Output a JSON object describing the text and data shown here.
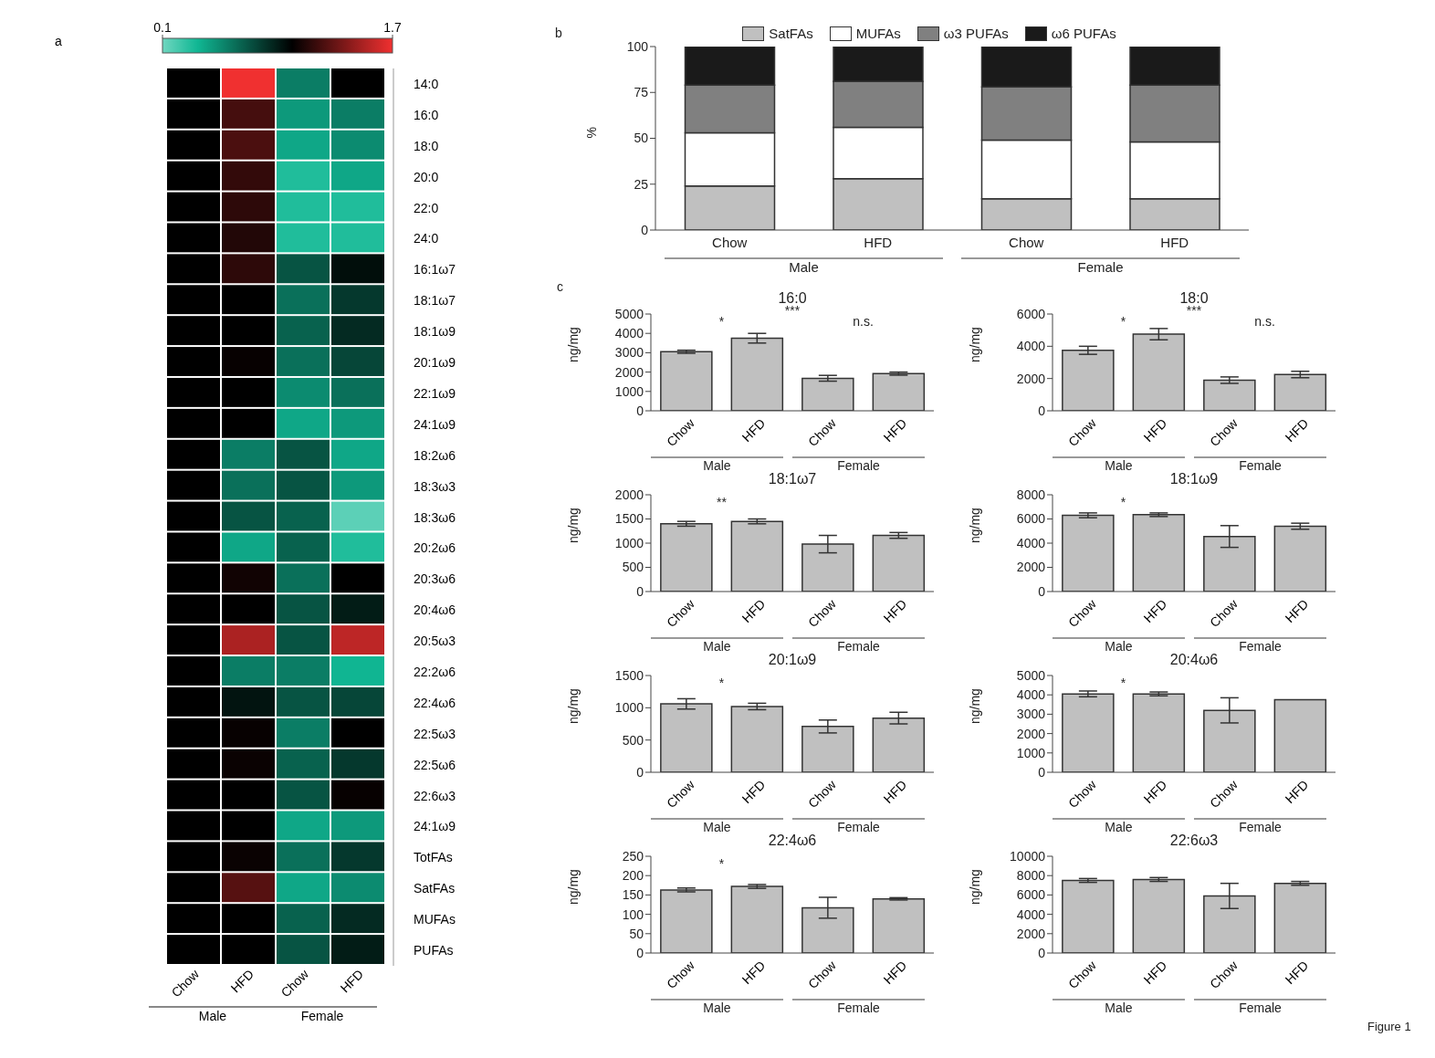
{
  "chart_data": [
    {
      "type": "heatmap",
      "annotations": [
        "a",
        "Male",
        "Female"
      ],
      "categories": [
        "Chow",
        "HFD",
        "Chow",
        "HFD"
      ],
      "y_categories": [
        "14:0",
        "16:0",
        "18:0",
        "20:0",
        "22:0",
        "24:0",
        "16:1ω7",
        "18:1ω7",
        "18:1ω9",
        "20:1ω9",
        "22:1ω9",
        "24:1ω9",
        "18:2ω6",
        "18:3ω3",
        "18:3ω6",
        "20:2ω6",
        "20:3ω6",
        "20:4ω6",
        "20:5ω3",
        "22:2ω6",
        "22:4ω6",
        "22:5ω3",
        "22:5ω6",
        "22:6ω3",
        "24:1ω9",
        "TotFAs",
        "SatFAs",
        "MUFAs",
        "PUFAs"
      ],
      "cells": [
        [
          1,
          1.7,
          0.55,
          1.0
        ],
        [
          1,
          1.2,
          0.45,
          0.55
        ],
        [
          1,
          1.22,
          0.4,
          0.5
        ],
        [
          1,
          1.15,
          0.3,
          0.4
        ],
        [
          1,
          1.13,
          0.3,
          0.3
        ],
        [
          1,
          1.1,
          0.3,
          0.3
        ],
        [
          1,
          1.13,
          0.7,
          0.95
        ],
        [
          1,
          1.0,
          0.6,
          0.8
        ],
        [
          1,
          1.0,
          0.65,
          0.85
        ],
        [
          1,
          1.02,
          0.6,
          0.75
        ],
        [
          1,
          1.0,
          0.5,
          0.6
        ],
        [
          1,
          1.0,
          0.4,
          0.45
        ],
        [
          1,
          0.55,
          0.7,
          0.4
        ],
        [
          1,
          0.6,
          0.7,
          0.45
        ],
        [
          1,
          0.7,
          0.65,
          0.15
        ],
        [
          1,
          0.4,
          0.65,
          0.3
        ],
        [
          1,
          1.05,
          0.6,
          1.0
        ],
        [
          1,
          1.0,
          0.7,
          0.9
        ],
        [
          1,
          1.5,
          0.7,
          1.55
        ],
        [
          1,
          0.55,
          0.55,
          0.35
        ],
        [
          1,
          0.93,
          0.7,
          0.75
        ],
        [
          1,
          1.02,
          0.55,
          1.0
        ],
        [
          1,
          1.03,
          0.65,
          0.8
        ],
        [
          1,
          1.0,
          0.7,
          1.02
        ],
        [
          1,
          1.0,
          0.4,
          0.45
        ],
        [
          1,
          1.03,
          0.6,
          0.8
        ],
        [
          1,
          1.25,
          0.4,
          0.5
        ],
        [
          1,
          1.0,
          0.65,
          0.85
        ],
        [
          1,
          1.0,
          0.7,
          0.9
        ]
      ],
      "clim": [
        0.1,
        1.7
      ],
      "cticks": [
        0.1,
        1.7
      ]
    },
    {
      "type": "bar",
      "stacked": true,
      "annotations": [
        "b",
        "Male",
        "Female"
      ],
      "ylabel": "%",
      "categories": [
        "Chow",
        "HFD",
        "Chow",
        "HFD"
      ],
      "ylim": [
        0,
        100
      ],
      "yticks": [
        0,
        25,
        50,
        75,
        100
      ],
      "legend": "top",
      "series": [
        {
          "name": "SatFAs",
          "color": "#c0c0c0",
          "values": [
            24,
            28,
            17,
            17
          ]
        },
        {
          "name": "MUFAs",
          "color": "#ffffff",
          "values": [
            29,
            28,
            32,
            31
          ]
        },
        {
          "name": "ω3 PUFAs",
          "color": "#808080",
          "values": [
            26,
            25,
            29,
            31
          ]
        },
        {
          "name": "ω6 PUFAs",
          "color": "#1a1a1a",
          "values": [
            21,
            19,
            22,
            21
          ]
        }
      ]
    },
    {
      "type": "bar",
      "title": "16:0",
      "ylabel": "ng/mg",
      "annotations": [
        "c",
        "Male",
        "Female",
        "*",
        "***",
        "n.s."
      ],
      "categories": [
        "Chow",
        "HFD",
        "Chow",
        "HFD"
      ],
      "values": [
        3050,
        3750,
        1680,
        1920
      ],
      "errors": [
        80,
        250,
        150,
        80
      ],
      "color": "#c0c0c0",
      "ylim": [
        0,
        5000
      ],
      "yticks": [
        0,
        1000,
        2000,
        3000,
        4000,
        5000
      ]
    },
    {
      "type": "bar",
      "title": "18:0",
      "ylabel": "ng/mg",
      "annotations": [
        "Male",
        "Female",
        "*",
        "***",
        "n.s."
      ],
      "categories": [
        "Chow",
        "HFD",
        "Chow",
        "HFD"
      ],
      "values": [
        3750,
        4750,
        1900,
        2250
      ],
      "errors": [
        250,
        350,
        200,
        200
      ],
      "color": "#c0c0c0",
      "ylim": [
        0,
        6000
      ],
      "yticks": [
        0,
        2000,
        4000,
        6000
      ]
    },
    {
      "type": "bar",
      "title": "18:1ω7",
      "ylabel": "ng/mg",
      "annotations": [
        "Male",
        "Female",
        "**"
      ],
      "categories": [
        "Chow",
        "HFD",
        "Chow",
        "HFD"
      ],
      "values": [
        1400,
        1450,
        980,
        1160
      ],
      "errors": [
        50,
        50,
        180,
        60
      ],
      "color": "#c0c0c0",
      "ylim": [
        0,
        2000
      ],
      "yticks": [
        0,
        500,
        1000,
        1500,
        2000
      ]
    },
    {
      "type": "bar",
      "title": "18:1ω9",
      "ylabel": "ng/mg",
      "annotations": [
        "Male",
        "Female",
        "*"
      ],
      "categories": [
        "Chow",
        "HFD",
        "Chow",
        "HFD"
      ],
      "values": [
        6300,
        6350,
        4550,
        5400
      ],
      "errors": [
        200,
        150,
        900,
        250
      ],
      "color": "#c0c0c0",
      "ylim": [
        0,
        8000
      ],
      "yticks": [
        0,
        2000,
        4000,
        6000,
        8000
      ]
    },
    {
      "type": "bar",
      "title": "20:1ω9",
      "ylabel": "ng/mg",
      "annotations": [
        "Male",
        "Female",
        "*"
      ],
      "categories": [
        "Chow",
        "HFD",
        "Chow",
        "HFD"
      ],
      "values": [
        1060,
        1020,
        710,
        840
      ],
      "errors": [
        80,
        50,
        100,
        90
      ],
      "color": "#c0c0c0",
      "ylim": [
        0,
        1500
      ],
      "yticks": [
        0,
        500,
        1000,
        1500
      ]
    },
    {
      "type": "bar",
      "title": "20:4ω6",
      "ylabel": "ng/mg",
      "annotations": [
        "Male",
        "Female",
        "*"
      ],
      "categories": [
        "Chow",
        "HFD",
        "Chow",
        "HFD"
      ],
      "values": [
        4050,
        4050,
        3200,
        3750
      ],
      "errors": [
        150,
        100,
        650,
        null
      ],
      "color": "#c0c0c0",
      "ylim": [
        0,
        5000
      ],
      "yticks": [
        0,
        1000,
        2000,
        3000,
        4000,
        5000
      ]
    },
    {
      "type": "bar",
      "title": "22:4ω6",
      "ylabel": "ng/mg",
      "annotations": [
        "Male",
        "Female",
        "*"
      ],
      "categories": [
        "Chow",
        "HFD",
        "Chow",
        "HFD"
      ],
      "values": [
        163,
        172,
        117,
        140
      ],
      "errors": [
        5,
        5,
        27,
        3
      ],
      "color": "#c0c0c0",
      "ylim": [
        0,
        250
      ],
      "yticks": [
        0,
        50,
        100,
        150,
        200,
        250
      ]
    },
    {
      "type": "bar",
      "title": "22:6ω3",
      "ylabel": "ng/mg",
      "annotations": [
        "Male",
        "Female",
        "Figure 1"
      ],
      "categories": [
        "Chow",
        "HFD",
        "Chow",
        "HFD"
      ],
      "values": [
        7500,
        7600,
        5900,
        7200
      ],
      "errors": [
        200,
        200,
        1300,
        200
      ],
      "color": "#c0c0c0",
      "ylim": [
        0,
        10000
      ],
      "yticks": [
        0,
        2000,
        4000,
        6000,
        8000,
        10000
      ]
    }
  ]
}
